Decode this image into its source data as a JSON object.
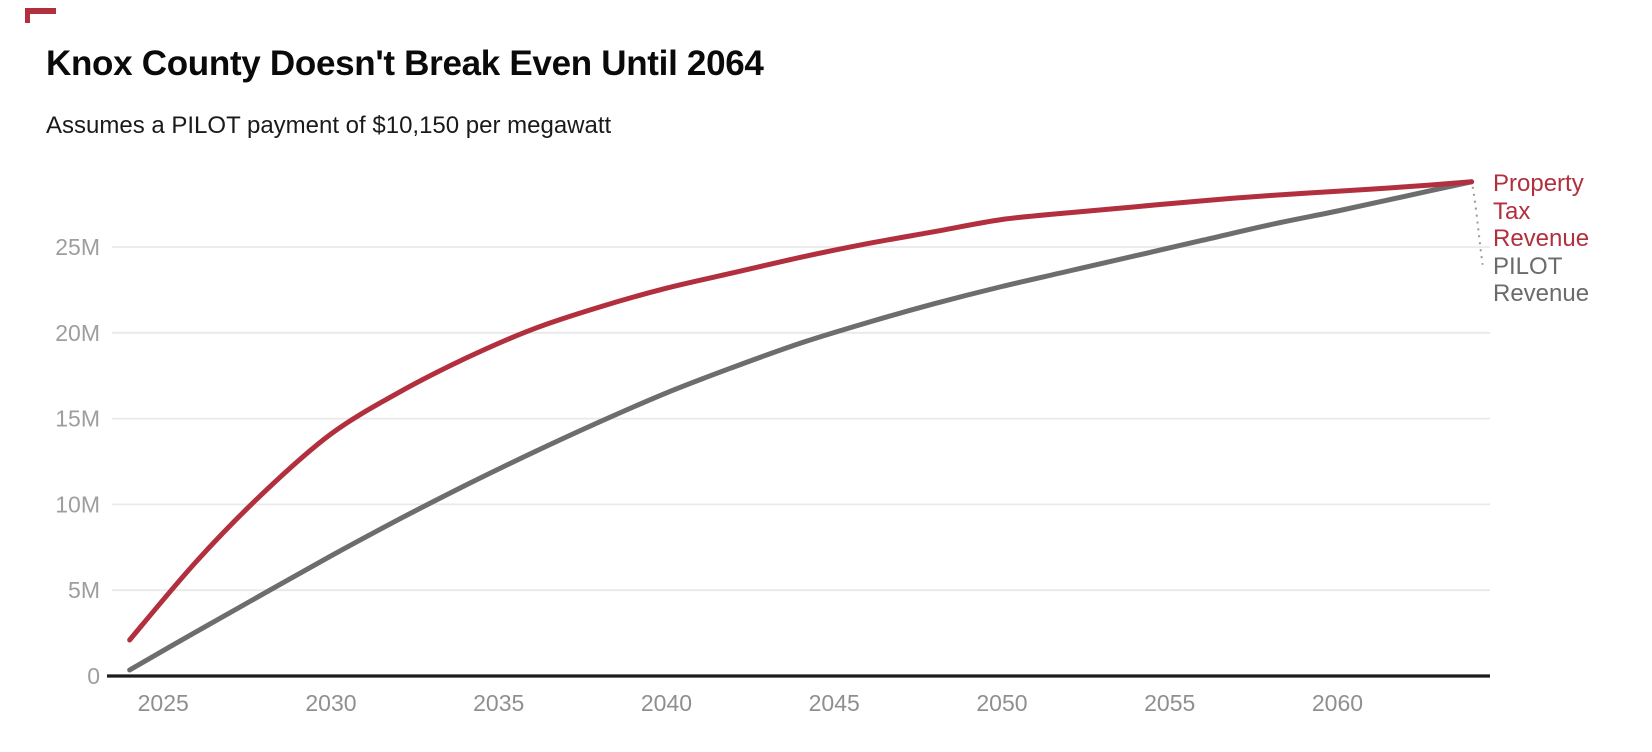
{
  "page": {
    "background": "#ffffff"
  },
  "logo_mark": {
    "color": "#b22f3e"
  },
  "chart_data": {
    "type": "line",
    "title": "Knox County Doesn't Break Even Until 2064",
    "subtitle": "Assumes a PILOT payment of $10,150 per megawatt",
    "units": "USD, millions (M)",
    "grid": "horizontal gridlines on, light gray",
    "legend_position": "right of line ends, direct labels",
    "xlim": [
      2024,
      2064.6
    ],
    "ylim": [
      0,
      29.5
    ],
    "x": [
      2024,
      2026,
      2028,
      2030,
      2032,
      2034,
      2036,
      2038,
      2040,
      2042,
      2044,
      2046,
      2048,
      2050,
      2052,
      2054,
      2056,
      2058,
      2060,
      2062,
      2064
    ],
    "series": [
      {
        "name": "Property Tax Revenue",
        "legend_label": "Property\nTax\nRevenue",
        "color": "#b22f3e",
        "values_millions": [
          2.1,
          6.7,
          10.7,
          14.1,
          16.5,
          18.5,
          20.2,
          21.5,
          22.6,
          23.5,
          24.4,
          25.2,
          25.9,
          26.6,
          27.0,
          27.35,
          27.7,
          28.0,
          28.25,
          28.5,
          28.8
        ]
      },
      {
        "name": "PILOT Revenue",
        "legend_label": "PILOT\nRevenue",
        "color": "#6d6d6d",
        "legend_text_color": "#6b6b6b",
        "values_millions": [
          0.35,
          2.6,
          4.8,
          7.0,
          9.1,
          11.1,
          13.0,
          14.8,
          16.5,
          18.0,
          19.4,
          20.6,
          21.7,
          22.7,
          23.6,
          24.5,
          25.4,
          26.3,
          27.1,
          27.95,
          28.8
        ]
      }
    ],
    "break_even": {
      "year_label_in_title": "2064",
      "value_millions": 28.8
    },
    "y_ticks": [
      {
        "label": "0",
        "value": 0
      },
      {
        "label": "5M",
        "value": 5
      },
      {
        "label": "10M",
        "value": 10
      },
      {
        "label": "15M",
        "value": 15
      },
      {
        "label": "20M",
        "value": 20
      },
      {
        "label": "25M",
        "value": 25
      }
    ],
    "x_ticks": [
      {
        "label": "2025",
        "value": 2025
      },
      {
        "label": "2030",
        "value": 2030
      },
      {
        "label": "2035",
        "value": 2035
      },
      {
        "label": "2040",
        "value": 2040
      },
      {
        "label": "2045",
        "value": 2045
      },
      {
        "label": "2050",
        "value": 2050
      },
      {
        "label": "2055",
        "value": 2055
      },
      {
        "label": "2060",
        "value": 2060
      }
    ],
    "colors": {
      "axis_line": "#1c1c1c",
      "gridline": "#e9e9e9",
      "y_tick_text": "#9e9e9e",
      "x_tick_text": "#8f8f8f",
      "leader_line": "#999999"
    }
  }
}
